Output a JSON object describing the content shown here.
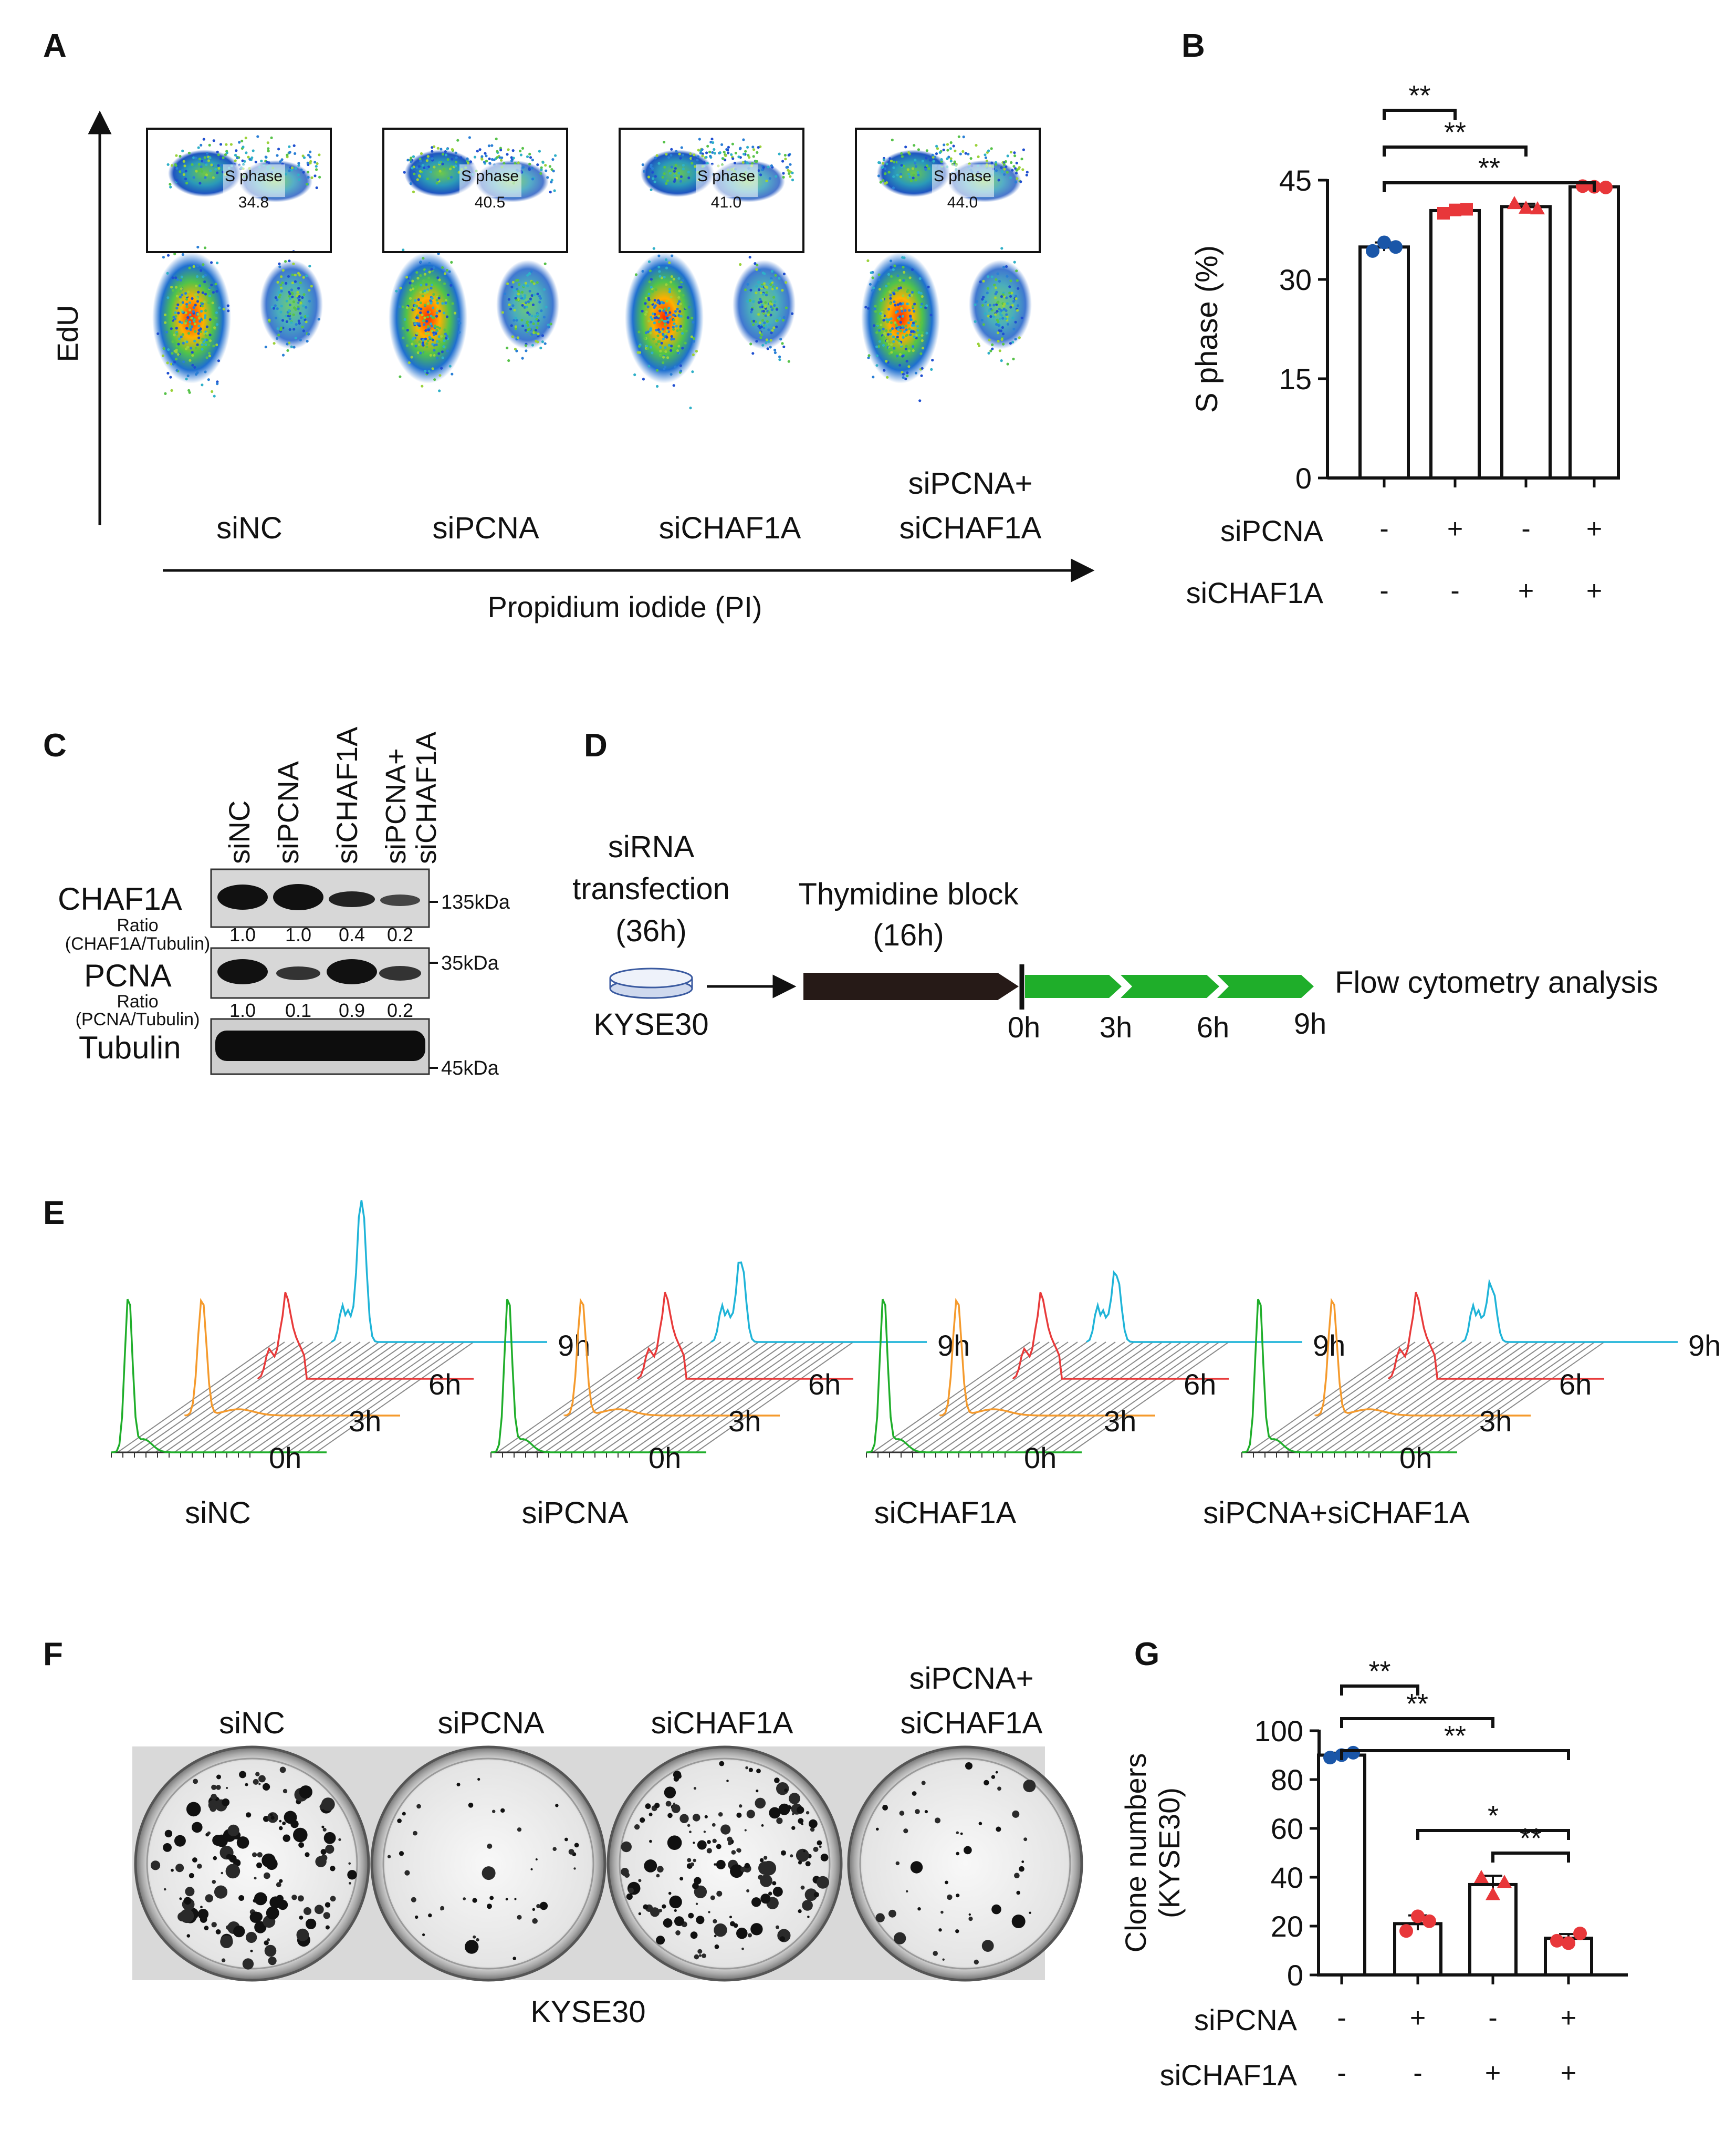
{
  "panels": {
    "A": {
      "letter": "A",
      "y_axis_label": "EdU",
      "x_axis_label": "Propidium iodide (PI)",
      "gate_label": "S phase",
      "samples": [
        {
          "name": "siNC",
          "s_phase": "34.8"
        },
        {
          "name": "siPCNA",
          "s_phase": "40.5"
        },
        {
          "name": "siCHAF1A",
          "s_phase": "41.0"
        },
        {
          "name_line1": "siPCNA+",
          "name_line2": "siCHAF1A",
          "s_phase": "44.0"
        }
      ]
    },
    "B": {
      "letter": "B",
      "stars": [
        "**",
        "**",
        "**"
      ]
    },
    "C": {
      "letter": "C",
      "lanes": [
        "siNC",
        "siPCNA",
        "siCHAF1A",
        "siPCNA+",
        "siCHAF1A"
      ],
      "rows": [
        {
          "label": "CHAF1A",
          "marker": "135kDa"
        },
        {
          "label": "PCNA",
          "marker": "35kDa"
        },
        {
          "label": "Tubulin",
          "marker": "45kDa"
        }
      ],
      "ratio1": {
        "label1": "Ratio",
        "label2": "(CHAF1A/Tubulin)",
        "values": [
          "1.0",
          "1.0",
          "0.4",
          "0.2"
        ]
      },
      "ratio2": {
        "label1": "Ratio",
        "label2": "(PCNA/Tubulin)",
        "values": [
          "1.0",
          "0.1",
          "0.9",
          "0.2"
        ]
      }
    },
    "D": {
      "letter": "D",
      "step1_line1": "siRNA",
      "step1_line2": "transfection",
      "step1_line3": "(36h)",
      "cell_line": "KYSE30",
      "step2_line1": "Thymidine block",
      "step2_line2": "(16h)",
      "times": [
        "0h",
        "3h",
        "6h",
        "9h"
      ],
      "end_label": "Flow cytometry analysis"
    },
    "E": {
      "letter": "E",
      "samples": [
        "siNC",
        "siPCNA",
        "siCHAF1A",
        "siPCNA+siCHAF1A"
      ],
      "times": [
        "0h",
        "3h",
        "6h",
        "9h"
      ]
    },
    "F": {
      "letter": "F",
      "samples": [
        "siNC",
        "siPCNA",
        "siCHAF1A",
        "siPCNA+",
        "siCHAF1A"
      ],
      "cell_line": "KYSE30"
    },
    "G": {
      "letter": "G",
      "stars": [
        "**",
        "**",
        "**",
        "*",
        "**"
      ]
    }
  },
  "colors": {
    "blue": "#1a56a8",
    "red": "#e8373a",
    "green": "#1fae2a",
    "orange": "#f59a2c",
    "trace_red": "#e83a3a",
    "cyan": "#1fb4d8"
  },
  "chart_data": [
    {
      "panel": "B",
      "type": "bar",
      "title": "",
      "ylabel": "S phase (%)",
      "xlabel": "",
      "ylim": [
        0,
        45
      ],
      "yticks": [
        "0",
        "15",
        "30",
        "45"
      ],
      "categories": [
        "siNC",
        "siPCNA",
        "siCHAF1A",
        "siPCNA+siCHAF1A"
      ],
      "values": [
        34.9,
        40.4,
        41.0,
        44.0
      ],
      "points": [
        [
          34.3,
          35.6,
          34.9
        ],
        [
          40.0,
          40.5,
          40.6
        ],
        [
          41.5,
          40.8,
          40.7
        ],
        [
          44.1,
          44.0,
          43.9
        ]
      ],
      "point_colors": [
        "blue",
        "red",
        "red",
        "red"
      ],
      "factors": [
        {
          "name": "siPCNA",
          "levels": [
            "-",
            "+",
            "-",
            "+"
          ]
        },
        {
          "name": "siCHAF1A",
          "levels": [
            "-",
            "-",
            "+",
            "+"
          ]
        }
      ],
      "comparisons": [
        {
          "from": 0,
          "to": 1,
          "label": "**"
        },
        {
          "from": 0,
          "to": 2,
          "label": "**"
        },
        {
          "from": 0,
          "to": 3,
          "label": "**"
        }
      ]
    },
    {
      "panel": "G",
      "type": "bar",
      "title": "",
      "ylabel_line1": "Clone numbers",
      "ylabel_line2": "(KYSE30)",
      "xlabel": "",
      "ylim": [
        0,
        100
      ],
      "yticks": [
        "0",
        "20",
        "40",
        "60",
        "80",
        "100"
      ],
      "categories": [
        "siNC",
        "siPCNA",
        "siCHAF1A",
        "siPCNA+siCHAF1A"
      ],
      "values": [
        90,
        21,
        37,
        15
      ],
      "points": [
        [
          89,
          90,
          91
        ],
        [
          18,
          24,
          22
        ],
        [
          40,
          33,
          38
        ],
        [
          14,
          13,
          17
        ]
      ],
      "point_colors": [
        "blue",
        "red",
        "red",
        "red"
      ],
      "factors": [
        {
          "name": "siPCNA",
          "levels": [
            "-",
            "+",
            "-",
            "+"
          ]
        },
        {
          "name": "siCHAF1A",
          "levels": [
            "-",
            "-",
            "+",
            "+"
          ]
        }
      ],
      "comparisons": [
        {
          "from": 0,
          "to": 1,
          "label": "**"
        },
        {
          "from": 0,
          "to": 2,
          "label": "**"
        },
        {
          "from": 0,
          "to": 3,
          "label": "**"
        },
        {
          "from": 1,
          "to": 3,
          "label": "*"
        },
        {
          "from": 2,
          "to": 3,
          "label": "**"
        }
      ]
    }
  ]
}
